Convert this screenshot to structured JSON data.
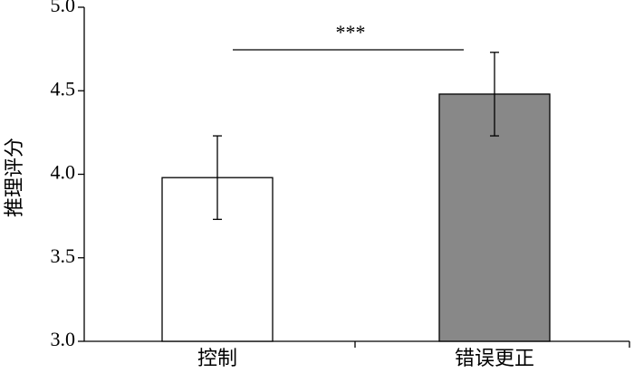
{
  "chart_data": {
    "type": "bar",
    "y_label": "推理评分",
    "categories": [
      "控制",
      "错误更正"
    ],
    "values": [
      3.98,
      4.48
    ],
    "errors": [
      0.25,
      0.25
    ],
    "colors": [
      "#ffffff",
      "#888888"
    ],
    "annotation": "***",
    "ylim": [
      3,
      5
    ],
    "yticks": [
      {
        "value": 3,
        "label": "3.0"
      },
      {
        "value": 3.5,
        "label": "3.5"
      },
      {
        "value": 4,
        "label": "4.0"
      },
      {
        "value": 4.5,
        "label": "4.5"
      },
      {
        "value": 5,
        "label": "5.0"
      }
    ]
  }
}
